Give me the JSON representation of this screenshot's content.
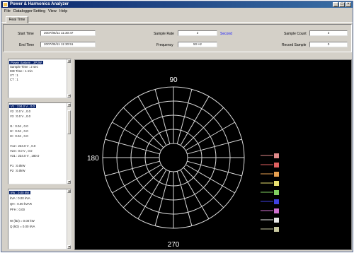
{
  "window": {
    "title": "Power & Harmonics Analyzer",
    "min": "_",
    "max": "□",
    "close": "×"
  },
  "menu": [
    "File",
    "Datalogger",
    "Setting",
    "View",
    "Help"
  ],
  "tabs": [
    "Real Time"
  ],
  "header": {
    "start_time_label": "Start Time",
    "start_time_value": "2007/05/11 11:30:47",
    "end_time_label": "End Time",
    "end_time_value": "2007/05/11 11:30:51",
    "sample_rate_label": "Sample Rate",
    "sample_rate_value": "2",
    "sample_rate_unit": "Second",
    "frequency_label": "Frequency",
    "frequency_value": "50 Hz",
    "sample_count_label": "Sample Count",
    "sample_count_value": "3",
    "record_sample_label": "Record Sample",
    "record_sample_value": "0"
  },
  "panel_system": {
    "selected": "Power System : 3P3W",
    "rows": [
      "Sample Time : 2 sec",
      "MD Time : 1 min",
      "VT : 1",
      "CT : 1"
    ]
  },
  "panel_values": {
    "selected": "V1 : 234.0 V , 0.0",
    "rows": [
      "V2 : 0.0 V , 0.0",
      "V3 : 0.0 V , 0.0",
      "",
      "I1 : 0.04 , 0.0",
      "I2 : 0.04 , 0.0",
      "I3 : 0.04 , 0.0",
      "",
      "V12 : 234.0 V , 0.0",
      "V23 : 0.0 V , 0.0",
      "V31 : 234.0 V , 180.0",
      "",
      "P1 : 0.0kW",
      "P2 : 0.0kW"
    ]
  },
  "panel_power": {
    "selected": "kW : 0.00 kW",
    "rows": [
      "kVA : 0.00 kVA",
      "QH : 0.00 kVAR",
      "PFH : 0.00",
      "",
      "W (kD) = 0.00 kW",
      "Q (kD) = 0.00 kVA"
    ]
  },
  "chart_data": {
    "type": "polar",
    "angle_labels": {
      "top": "90",
      "left": "180",
      "bottom": "270"
    },
    "rings": 5,
    "spokes": 24,
    "legend_colors": [
      "#e08a8a",
      "#e06060",
      "#e8a050",
      "#e8e070",
      "#80d060",
      "#4040e0",
      "#d070d0",
      "#e8e8e8",
      "#c8c8a0"
    ]
  },
  "colors": {
    "plot_bg": "#000000",
    "grid": "#d8d8d8",
    "titlebar": "#0a246a"
  }
}
